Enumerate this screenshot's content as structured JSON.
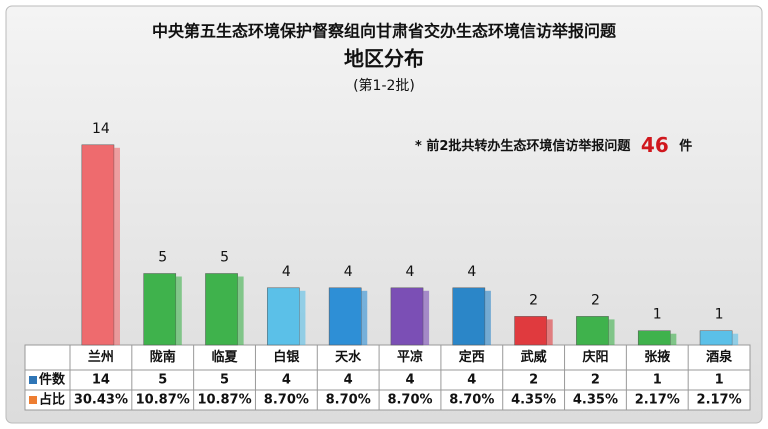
{
  "chart_data": {
    "type": "bar",
    "title": "中央第五生态环境保护督察组向甘肃省交办生态环境信访举报问题",
    "subtitle": "地区分布",
    "subtitle2": "(第1-2批)",
    "annotation": {
      "prefix": "* 前2批共转办生态环境信访举报问题",
      "total": 46,
      "suffix": "件"
    },
    "categories": [
      "兰州",
      "陇南",
      "临夏",
      "白银",
      "天水",
      "平凉",
      "定西",
      "武威",
      "庆阳",
      "张掖",
      "酒泉"
    ],
    "series": [
      {
        "name": "件数",
        "color": "#2e75b6",
        "values": [
          14,
          5,
          5,
          4,
          4,
          4,
          4,
          2,
          2,
          1,
          1
        ],
        "colors": [
          "#ee6b6e",
          "#3fb24c",
          "#3fb24c",
          "#5bc0e8",
          "#2e8fd6",
          "#7b4fb5",
          "#2b86c8",
          "#e03a3e",
          "#3fb24c",
          "#3fb24c",
          "#5bc0e8"
        ]
      },
      {
        "name": "占比",
        "color": "#ed7d31",
        "values": [
          30.43,
          10.87,
          10.87,
          8.7,
          8.7,
          8.7,
          8.7,
          4.35,
          4.35,
          2.17,
          2.17
        ],
        "value_labels": [
          "30.43%",
          "10.87%",
          "10.87%",
          "8.70%",
          "8.70%",
          "8.70%",
          "8.70%",
          "4.35%",
          "4.35%",
          "2.17%",
          "2.17%"
        ]
      }
    ]
  }
}
